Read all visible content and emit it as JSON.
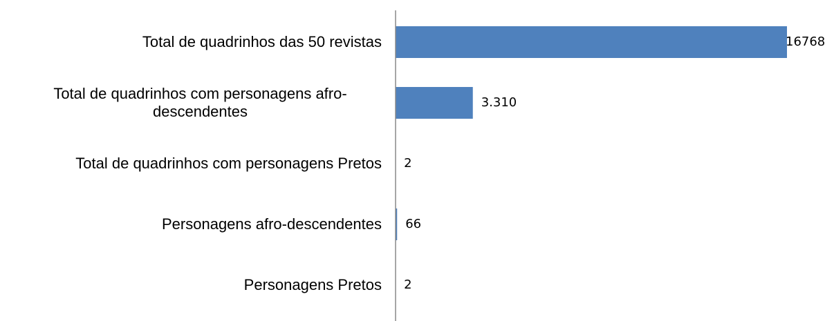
{
  "chart_data": {
    "type": "bar",
    "orientation": "horizontal",
    "categories": [
      "Total de quadrinhos das 50 revistas",
      "Total de quadrinhos com personagens afro-descendentes",
      "Total de quadrinhos com personagens Pretos",
      "Personagens afro-descendentes",
      "Personagens Pretos"
    ],
    "values": [
      16768,
      3310,
      2,
      66,
      2
    ],
    "value_labels": [
      "16768",
      "3.310",
      "2",
      "66",
      "2"
    ],
    "color": "#4f81bd"
  }
}
